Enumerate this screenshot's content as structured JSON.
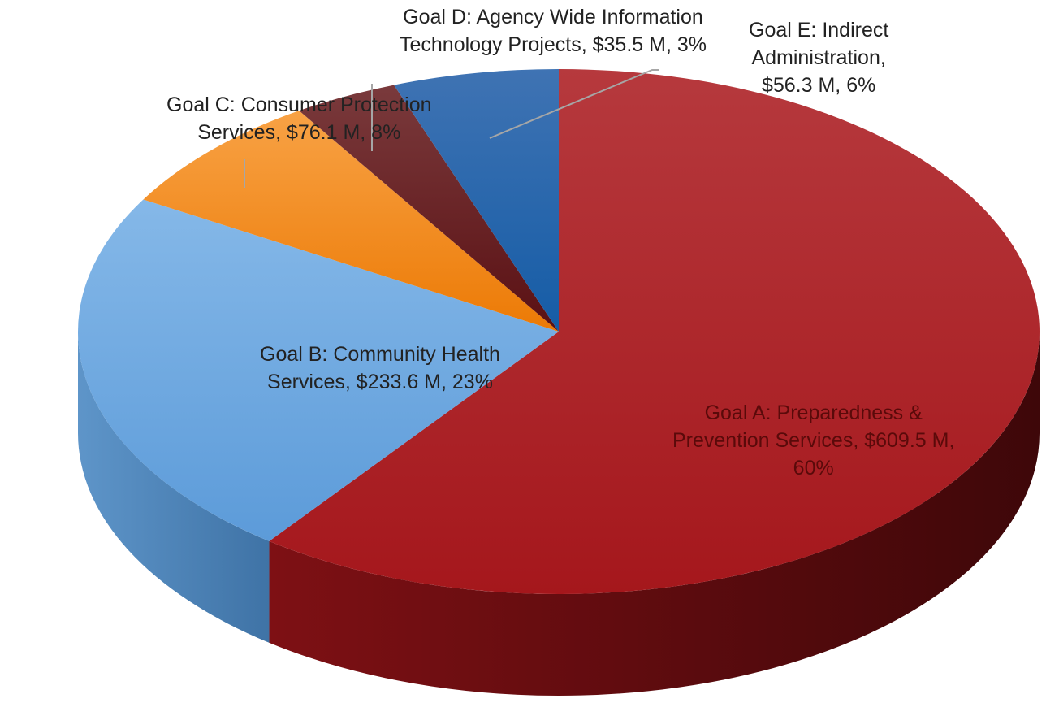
{
  "chart_data": {
    "type": "pie",
    "style": "3d",
    "slices": [
      {
        "key": "a",
        "category": "Goal A: Preparedness & Prevention Services",
        "value": 609.5,
        "value_label": "$609.5 M",
        "percent": 60,
        "color": "#a5171c",
        "label_lines": [
          "Goal A: Preparedness &",
          "Prevention Services,  $609.5 M,",
          "60%"
        ]
      },
      {
        "key": "b",
        "category": "Goal B: Community Health Services",
        "value": 233.6,
        "value_label": "$233.6 M",
        "percent": 23,
        "color": "#66a3de",
        "label_lines": [
          "Goal B: Community Health",
          "Services,  $233.6 M, 23%"
        ]
      },
      {
        "key": "c",
        "category": "Goal C: Consumer Protection Services",
        "value": 76.1,
        "value_label": "$76.1 M",
        "percent": 8,
        "color": "#f58a12",
        "label_lines": [
          "Goal C: Consumer Protection",
          "Services,  $76.1 M, 8%"
        ]
      },
      {
        "key": "d",
        "category": "Goal D: Agency Wide Information Technology Projects",
        "value": 35.5,
        "value_label": "$35.5 M",
        "percent": 3,
        "color": "#6b1518",
        "label_lines": [
          "Goal D: Agency Wide Information",
          "Technology Projects,  $35.5 M, 3%"
        ]
      },
      {
        "key": "e",
        "category": "Goal E: Indirect Administration",
        "value": 56.3,
        "value_label": "$56.3 M",
        "percent": 6,
        "color": "#1f5fa8",
        "label_lines": [
          "Goal E: Indirect",
          "Administration,",
          "$56.3 M, 6%"
        ]
      }
    ],
    "legend": "none",
    "data_labels": "category, value, percent"
  }
}
